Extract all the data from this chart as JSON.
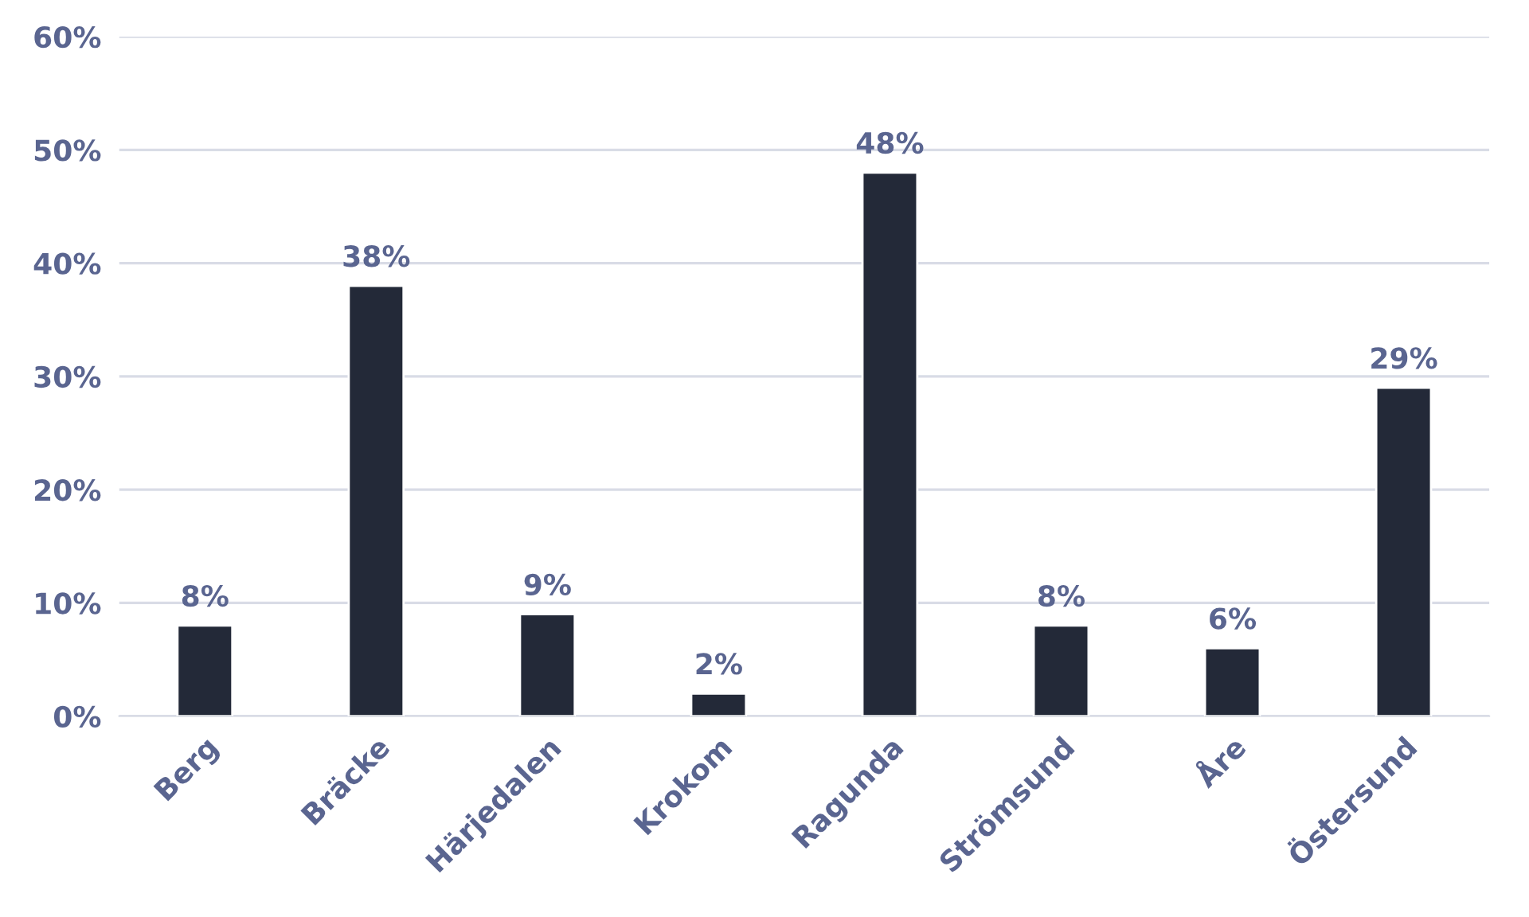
{
  "chart_data": {
    "type": "bar",
    "categories": [
      "Berg",
      "Bräcke",
      "Härjedalen",
      "Krokom",
      "Ragunda",
      "Strömsund",
      "Åre",
      "Östersund"
    ],
    "values": [
      8,
      38,
      9,
      2,
      48,
      8,
      6,
      29
    ],
    "value_labels": [
      "8%",
      "38%",
      "9%",
      "2%",
      "48%",
      "8%",
      "6%",
      "29%"
    ],
    "color": "#232938",
    "ylim": [
      0,
      60
    ],
    "yticks": [
      {
        "value": 0,
        "label": "0%"
      },
      {
        "value": 10,
        "label": "10%"
      },
      {
        "value": 20,
        "label": "20%"
      },
      {
        "value": 30,
        "label": "30%"
      },
      {
        "value": 40,
        "label": "40%"
      },
      {
        "value": 50,
        "label": "50%"
      },
      {
        "value": 60,
        "label": "60%"
      }
    ],
    "grid": "y"
  }
}
